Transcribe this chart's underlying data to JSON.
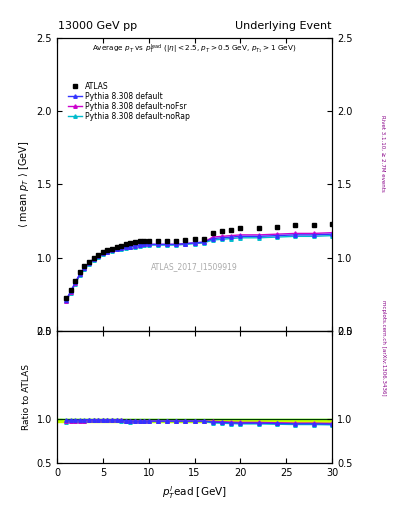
{
  "title_left": "13000 GeV pp",
  "title_right": "Underlying Event",
  "panel1_ylabel": "$\\langle$ mean $p_T$ $\\rangle$ [GeV]",
  "panel1_ylim": [
    0.5,
    2.5
  ],
  "panel2_ylabel": "Ratio to ATLAS",
  "panel2_ylim": [
    0.5,
    2.0
  ],
  "xlabel": "$p_T^l$ead [GeV]",
  "xlim": [
    0,
    30
  ],
  "annotation": "Average $p_T$ vs $p_T^{\\rm lead}$ ($|\\eta| < 2.5$, $p_T > 0.5$ GeV, $p_{T_1} > 1$ GeV)",
  "watermark": "ATLAS_2017_I1509919",
  "right_label_top": "Rivet 3.1.10, ≥ 2.7M events",
  "right_label_bottom": "mcplots.cern.ch [arXiv:1306.3436]",
  "legend_entries": [
    "ATLAS",
    "Pythia 8.308 default",
    "Pythia 8.308 default-noFsr",
    "Pythia 8.308 default-noRap"
  ],
  "atlas_x": [
    1.0,
    1.5,
    2.0,
    2.5,
    3.0,
    3.5,
    4.0,
    4.5,
    5.0,
    5.5,
    6.0,
    6.5,
    7.0,
    7.5,
    8.0,
    8.5,
    9.0,
    9.5,
    10.0,
    11.0,
    12.0,
    13.0,
    14.0,
    15.0,
    16.0,
    17.0,
    18.0,
    19.0,
    20.0,
    22.0,
    24.0,
    26.0,
    28.0,
    30.0
  ],
  "atlas_y": [
    0.72,
    0.78,
    0.84,
    0.9,
    0.94,
    0.97,
    1.0,
    1.02,
    1.04,
    1.05,
    1.06,
    1.07,
    1.08,
    1.09,
    1.1,
    1.105,
    1.11,
    1.115,
    1.115,
    1.115,
    1.115,
    1.115,
    1.12,
    1.125,
    1.13,
    1.17,
    1.18,
    1.19,
    1.2,
    1.2,
    1.21,
    1.22,
    1.22,
    1.23
  ],
  "pythia_x": [
    1.0,
    1.5,
    2.0,
    2.5,
    3.0,
    3.5,
    4.0,
    4.5,
    5.0,
    5.5,
    6.0,
    6.5,
    7.0,
    7.5,
    8.0,
    8.5,
    9.0,
    9.5,
    10.0,
    11.0,
    12.0,
    13.0,
    14.0,
    15.0,
    16.0,
    17.0,
    18.0,
    19.0,
    20.0,
    22.0,
    24.0,
    26.0,
    28.0,
    30.0
  ],
  "default_y": [
    0.71,
    0.77,
    0.83,
    0.89,
    0.93,
    0.965,
    0.99,
    1.01,
    1.03,
    1.04,
    1.05,
    1.06,
    1.065,
    1.07,
    1.075,
    1.08,
    1.085,
    1.09,
    1.09,
    1.09,
    1.09,
    1.09,
    1.095,
    1.1,
    1.105,
    1.13,
    1.135,
    1.14,
    1.145,
    1.145,
    1.15,
    1.155,
    1.155,
    1.16
  ],
  "noFsr_y": [
    0.705,
    0.765,
    0.825,
    0.885,
    0.925,
    0.96,
    0.99,
    1.01,
    1.03,
    1.04,
    1.05,
    1.06,
    1.065,
    1.07,
    1.075,
    1.08,
    1.085,
    1.09,
    1.09,
    1.09,
    1.09,
    1.09,
    1.095,
    1.1,
    1.105,
    1.14,
    1.145,
    1.15,
    1.155,
    1.155,
    1.16,
    1.165,
    1.165,
    1.17
  ],
  "noRap_y": [
    0.7,
    0.76,
    0.82,
    0.88,
    0.92,
    0.955,
    0.985,
    1.005,
    1.025,
    1.035,
    1.045,
    1.055,
    1.06,
    1.065,
    1.07,
    1.075,
    1.08,
    1.085,
    1.085,
    1.085,
    1.085,
    1.085,
    1.09,
    1.095,
    1.1,
    1.12,
    1.125,
    1.13,
    1.135,
    1.135,
    1.14,
    1.145,
    1.145,
    1.15
  ],
  "color_atlas": "#000000",
  "color_default": "#3333ff",
  "color_noFsr": "#cc00cc",
  "color_noRap": "#00bbcc",
  "band_color": "#ccff00",
  "band_green": "#00cc00",
  "band_lo": 0.965,
  "band_hi": 1.005
}
